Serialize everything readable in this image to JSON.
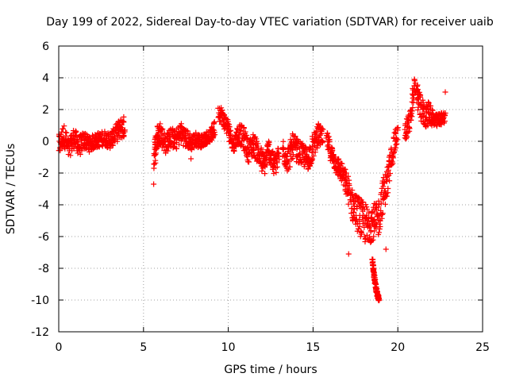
{
  "chart_data": {
    "type": "scatter",
    "title": "Day 199 of 2022, Sidereal Day-to-day VTEC variation (SDTVAR) for receiver uaib",
    "xlabel": "GPS time / hours",
    "ylabel": "SDTVAR / TECUs",
    "xlim": [
      0,
      25
    ],
    "ylim": [
      -12,
      6
    ],
    "xticks": [
      0,
      5,
      10,
      15,
      20,
      25
    ],
    "yticks": [
      6,
      4,
      2,
      0,
      -2,
      -4,
      -6,
      -8,
      -10,
      -12
    ],
    "grid": true,
    "marker": "+",
    "series_color": "#ff0000",
    "series": [
      {
        "name": "SDTVAR",
        "segments": [
          {
            "x": [
              0.0,
              0.3,
              0.6,
              0.9,
              1.2,
              1.5,
              1.8,
              2.1,
              2.4,
              2.7,
              3.0,
              3.3,
              3.6,
              3.9
            ],
            "y": [
              -0.3,
              0.4,
              -0.5,
              0.2,
              -0.3,
              0.1,
              -0.2,
              0.0,
              0.1,
              0.2,
              0.0,
              0.4,
              0.8,
              0.9
            ],
            "spread": [
              0.9,
              0.9,
              0.8,
              0.8,
              0.8,
              0.7,
              0.6,
              0.6,
              0.6,
              0.6,
              0.6,
              0.7,
              0.8,
              0.9
            ]
          },
          {
            "x": [
              5.6,
              5.8,
              6.0,
              6.3,
              6.6,
              6.9,
              7.2,
              7.5,
              7.8,
              8.1,
              8.4,
              8.7,
              9.0,
              9.2
            ],
            "y": [
              -1.0,
              0.2,
              0.6,
              -0.2,
              0.3,
              0.0,
              0.6,
              0.2,
              -0.1,
              0.1,
              0.0,
              0.2,
              0.4,
              0.8
            ],
            "spread": [
              1.2,
              1.0,
              0.9,
              0.8,
              0.8,
              0.8,
              0.8,
              0.8,
              0.6,
              0.6,
              0.5,
              0.5,
              0.5,
              0.7
            ]
          },
          {
            "x": [
              9.4,
              9.7,
              10.0,
              10.3,
              10.6,
              10.9,
              11.2,
              11.5,
              11.8,
              12.1,
              12.4,
              12.7,
              13.0
            ],
            "y": [
              2.0,
              1.4,
              0.8,
              -0.3,
              0.5,
              0.2,
              -0.6,
              -0.2,
              -0.8,
              -1.5,
              -0.5,
              -1.6,
              -0.9
            ],
            "spread": [
              0.7,
              0.7,
              0.7,
              0.6,
              0.8,
              0.9,
              0.9,
              0.9,
              0.9,
              0.9,
              0.9,
              0.9,
              0.9
            ]
          },
          {
            "x": [
              13.2,
              13.5,
              13.8,
              14.1,
              14.4,
              14.7,
              15.0,
              15.3,
              15.6
            ],
            "y": [
              -0.5,
              -1.2,
              -0.3,
              -0.6,
              -0.9,
              -1.1,
              -0.4,
              0.5,
              0.1
            ],
            "spread": [
              0.9,
              1.0,
              1.0,
              0.9,
              0.9,
              0.9,
              1.0,
              0.8,
              0.8
            ]
          },
          {
            "x": [
              15.8,
              16.1,
              16.4,
              16.7,
              17.0,
              17.3,
              17.6,
              17.9,
              18.2,
              18.5,
              18.8,
              19.1,
              19.4,
              19.7,
              20.0
            ],
            "y": [
              0.2,
              -0.9,
              -1.5,
              -2.0,
              -2.8,
              -4.0,
              -4.5,
              -5.0,
              -5.3,
              -5.0,
              -5.2,
              -3.5,
              -2.5,
              -0.6,
              0.6
            ],
            "spread": [
              0.7,
              0.8,
              0.8,
              0.8,
              1.0,
              1.3,
              1.5,
              1.6,
              1.6,
              1.5,
              1.5,
              1.4,
              1.2,
              0.9,
              0.8
            ]
          },
          {
            "x": [
              18.5,
              18.6,
              18.7,
              18.8,
              18.9
            ],
            "y": [
              -7.5,
              -8.4,
              -9.2,
              -9.7,
              -10.0
            ],
            "spread": [
              0.2,
              0.2,
              0.2,
              0.2,
              0.1
            ]
          },
          {
            "x": [
              20.4,
              20.7,
              21.0,
              21.3,
              21.6,
              21.9,
              22.2,
              22.5,
              22.8
            ],
            "y": [
              0.6,
              1.2,
              3.6,
              2.2,
              1.6,
              1.8,
              1.2,
              1.4,
              1.5
            ],
            "spread": [
              0.8,
              0.8,
              0.7,
              1.0,
              1.0,
              0.9,
              0.6,
              0.5,
              0.4
            ]
          }
        ],
        "isolated_points": [
          {
            "x": 5.6,
            "y": -2.7
          },
          {
            "x": 17.1,
            "y": -7.1
          },
          {
            "x": 22.8,
            "y": 3.1
          },
          {
            "x": 7.8,
            "y": -1.1
          },
          {
            "x": 19.3,
            "y": -6.8
          }
        ]
      }
    ]
  }
}
